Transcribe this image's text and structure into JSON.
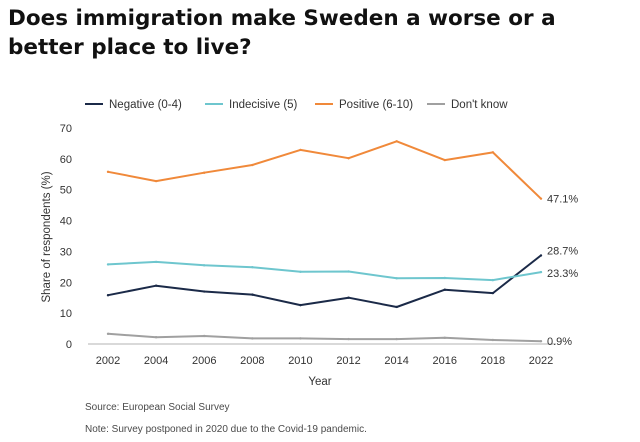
{
  "title": "Does immigration make Sweden a worse or a better place to live?",
  "footer": {
    "source": "Source: European Social Survey",
    "note": "Note: Survey postponed in 2020 due to the Covid-19 pandemic."
  },
  "chart_data": {
    "type": "line",
    "xlabel": "Year",
    "ylabel": "Share of respondents (%)",
    "ylim": [
      0,
      70
    ],
    "yticks": [
      0,
      10,
      20,
      30,
      40,
      50,
      60,
      70
    ],
    "x": [
      "2002",
      "2004",
      "2006",
      "2008",
      "2010",
      "2012",
      "2014",
      "2016",
      "2018",
      "2022"
    ],
    "series": [
      {
        "name": "Negative (0-4)",
        "color": "#1b2a48",
        "values": [
          15.8,
          18.9,
          17.0,
          16.0,
          12.6,
          15.0,
          12.0,
          17.6,
          16.5,
          28.7
        ]
      },
      {
        "name": "Indecisive (5)",
        "color": "#6ec6ce",
        "values": [
          25.8,
          26.6,
          25.5,
          24.9,
          23.4,
          23.5,
          21.3,
          21.4,
          20.7,
          23.3
        ]
      },
      {
        "name": "Positive (6-10)",
        "color": "#f0893a",
        "values": [
          55.8,
          52.8,
          55.5,
          58.0,
          62.9,
          60.2,
          65.7,
          59.6,
          62.1,
          47.1
        ]
      },
      {
        "name": "Don't know",
        "color": "#a0a0a0",
        "values": [
          3.3,
          2.2,
          2.6,
          1.8,
          1.8,
          1.6,
          1.6,
          2.0,
          1.3,
          0.9
        ]
      }
    ],
    "end_labels": [
      {
        "series": "Positive (6-10)",
        "text": "47.1%"
      },
      {
        "series": "Negative (0-4)",
        "text": "28.7%"
      },
      {
        "series": "Indecisive (5)",
        "text": "23.3%"
      },
      {
        "series": "Don't know",
        "text": "0.9%"
      }
    ],
    "legend_position": "top"
  }
}
